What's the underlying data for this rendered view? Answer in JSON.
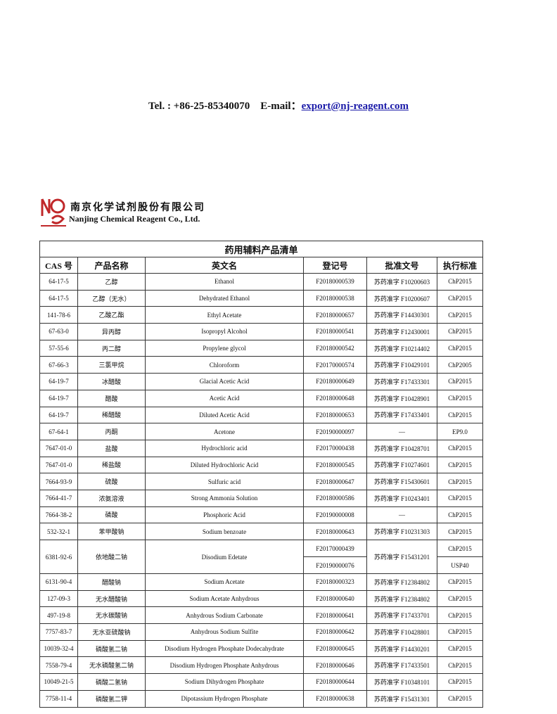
{
  "header": {
    "tel": "Tel. : +86-25-85340070",
    "email_label": "E-mail：",
    "email": "export@nj-reagent.com"
  },
  "company": {
    "name_cn": "南京化学试剂股份有限公司",
    "name_en": "Nanjing Chemical Reagent Co., Ltd."
  },
  "table": {
    "title": "药用辅料产品清单",
    "columns": [
      "CAS 号",
      "产品名称",
      "英文名",
      "登记号",
      "批准文号",
      "执行标准"
    ],
    "rows": [
      [
        "64-17-5",
        "乙醇",
        "Ethanol",
        "F20180000539",
        "苏药准字 F10200603",
        "ChP2015"
      ],
      [
        "64-17-5",
        "乙醇（无水）",
        "Dehydrated Ethanol",
        "F20180000538",
        "苏药准字 F10200607",
        "ChP2015"
      ],
      [
        "141-78-6",
        "乙酸乙酯",
        "Ethyl Acetate",
        "F20180000657",
        "苏药准字 F14430301",
        "ChP2015"
      ],
      [
        "67-63-0",
        "异丙醇",
        "Isopropyl Alcohol",
        "F20180000541",
        "苏药准字 F12430001",
        "ChP2015"
      ],
      [
        "57-55-6",
        "丙二醇",
        "Propylene glycol",
        "F20180000542",
        "苏药准字 F10214402",
        "ChP2015"
      ],
      [
        "67-66-3",
        "三氯甲烷",
        "Chloroform",
        "F20170000574",
        "苏药准字 F10429101",
        "ChP2005"
      ],
      [
        "64-19-7",
        "冰醋酸",
        "Glacial Acetic Acid",
        "F20180000649",
        "苏药准字 F17433301",
        "ChP2015"
      ],
      [
        "64-19-7",
        "醋酸",
        "Acetic Acid",
        "F20180000648",
        "苏药准字 F10428901",
        "ChP2015"
      ],
      [
        "64-19-7",
        "稀醋酸",
        "Diluted Acetic Acid",
        "F20180000653",
        "苏药准字 F17433401",
        "ChP2015"
      ],
      [
        "67-64-1",
        "丙酮",
        "Acetone",
        "F20190000097",
        "—",
        "EP9.0"
      ],
      [
        "7647-01-0",
        "盐酸",
        "Hydrochloric acid",
        "F20170000438",
        "苏药准字 F10428701",
        "ChP2015"
      ],
      [
        "7647-01-0",
        "稀盐酸",
        "Diluted Hydrochloric Acid",
        "F20180000545",
        "苏药准字 F10274601",
        "ChP2015"
      ],
      [
        "7664-93-9",
        "硫酸",
        "Sulfuric acid",
        "F20180000647",
        "苏药准字 F15430601",
        "ChP2015"
      ],
      [
        "7664-41-7",
        "浓氨溶液",
        "Strong Ammonia Solution",
        "F20180000586",
        "苏药准字 F10243401",
        "ChP2015"
      ],
      [
        "7664-38-2",
        "磷酸",
        "Phosphoric Acid",
        "F20190000008",
        "—",
        "ChP2015"
      ],
      [
        "532-32-1",
        "苯甲酸钠",
        "Sodium benzoate",
        "F20180000643",
        "苏药准字 F10231303",
        "ChP2015"
      ],
      [
        "6381-92-6",
        "依地酸二钠",
        "Disodium Edetate",
        [
          "F20170000439",
          "F20190000076"
        ],
        "苏药准字 F15431201",
        [
          "ChP2015",
          "USP40"
        ]
      ],
      [
        "6131-90-4",
        "醋酸钠",
        "Sodium Acetate",
        "F20180000323",
        "苏药准字 F12384802",
        "ChP2015"
      ],
      [
        "127-09-3",
        "无水醋酸钠",
        "Sodium Acetate Anhydrous",
        "F20180000640",
        "苏药准字 F12384802",
        "ChP2015"
      ],
      [
        "497-19-8",
        "无水碳酸钠",
        "Anhydrous Sodium Carbonate",
        "F20180000641",
        "苏药准字 F17433701",
        "ChP2015"
      ],
      [
        "7757-83-7",
        "无水亚硫酸钠",
        "Anhydrous Sodium Sulfite",
        "F20180000642",
        "苏药准字 F10428801",
        "ChP2015"
      ],
      [
        "10039-32-4",
        "磷酸氢二钠",
        "Disodium Hydrogen Phosphate Dodecahydrate",
        "F20180000645",
        "苏药准字 F14430201",
        "ChP2015"
      ],
      [
        "7558-79-4",
        "无水磷酸氢二钠",
        "Disodium Hydrogen Phosphate Anhydrous",
        "F20180000646",
        "苏药准字 F17433501",
        "ChP2015"
      ],
      [
        "10049-21-5",
        "磷酸二氢钠",
        "Sodium Dihydrogen Phosphate",
        "F20180000644",
        "苏药准字 F10348101",
        "ChP2015"
      ],
      [
        "7758-11-4",
        "磷酸氢二钾",
        "Dipotassium Hydrogen Phosphate",
        "F20180000638",
        "苏药准字 F15431301",
        "ChP2015"
      ]
    ]
  }
}
